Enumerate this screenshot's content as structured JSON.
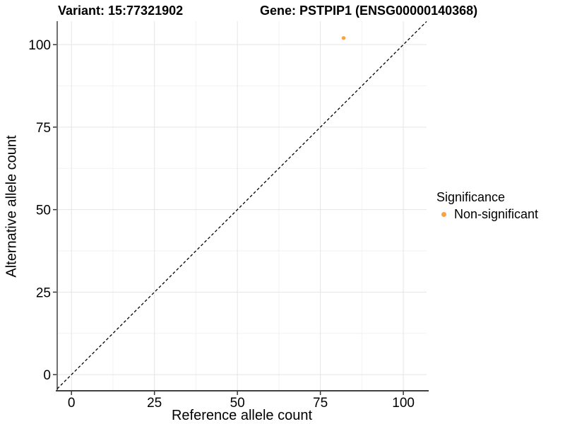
{
  "colors": {
    "background": "#ffffff",
    "point_orange": "#F9A242",
    "grid_major": "#E5E5E5",
    "grid_minor": "#F2F2F2",
    "axis_line": "#404040",
    "tick_mark": "#333333",
    "identity_line": "#000000",
    "text": "#000000"
  },
  "chart_data": {
    "type": "scatter",
    "title_left": "Variant: 15:77321902",
    "title_right": "Gene: PSTPIP1 (ENSG00000140368)",
    "xlabel": "Reference allele count",
    "ylabel": "Alternative allele count",
    "xlim": [
      -4.3,
      107.0
    ],
    "ylim": [
      -4.9,
      107.1
    ],
    "x_ticks": [
      0,
      25,
      50,
      75,
      100
    ],
    "y_ticks": [
      0,
      25,
      50,
      75,
      100
    ],
    "minor_x_ticks": [
      12.5,
      37.5,
      62.5,
      87.5
    ],
    "minor_y_ticks": [
      12.5,
      37.5,
      62.5,
      87.5
    ],
    "grid": true,
    "points": [
      {
        "x": 82,
        "y": 102,
        "series": "Non-significant",
        "color": "#F9A242"
      }
    ],
    "reference_line": {
      "kind": "identity",
      "style": "dashed",
      "color": "#000000"
    },
    "legend": {
      "title": "Significance",
      "position": "right",
      "items": [
        {
          "label": "Non-significant",
          "color": "#F9A242"
        }
      ]
    }
  }
}
